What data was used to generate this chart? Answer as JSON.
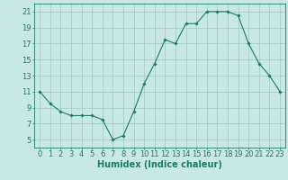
{
  "x": [
    0,
    1,
    2,
    3,
    4,
    5,
    6,
    7,
    8,
    9,
    10,
    11,
    12,
    13,
    14,
    15,
    16,
    17,
    18,
    19,
    20,
    21,
    22,
    23
  ],
  "y": [
    11,
    9.5,
    8.5,
    8,
    8,
    8,
    7.5,
    5,
    5.5,
    8.5,
    12,
    14.5,
    17.5,
    17,
    19.5,
    19.5,
    21,
    21,
    21,
    20.5,
    17,
    14.5,
    13,
    11
  ],
  "line_color": "#1a7a6a",
  "marker_color": "#1a7a6a",
  "bg_color": "#c8e8e5",
  "grid_color": "#a8ccc9",
  "xlabel": "Humidex (Indice chaleur)",
  "xlabel_fontsize": 7,
  "tick_fontsize": 6,
  "ylim": [
    4,
    22
  ],
  "xlim": [
    -0.5,
    23.5
  ],
  "yticks": [
    5,
    7,
    9,
    11,
    13,
    15,
    17,
    19,
    21
  ],
  "xticks": [
    0,
    1,
    2,
    3,
    4,
    5,
    6,
    7,
    8,
    9,
    10,
    11,
    12,
    13,
    14,
    15,
    16,
    17,
    18,
    19,
    20,
    21,
    22,
    23
  ]
}
